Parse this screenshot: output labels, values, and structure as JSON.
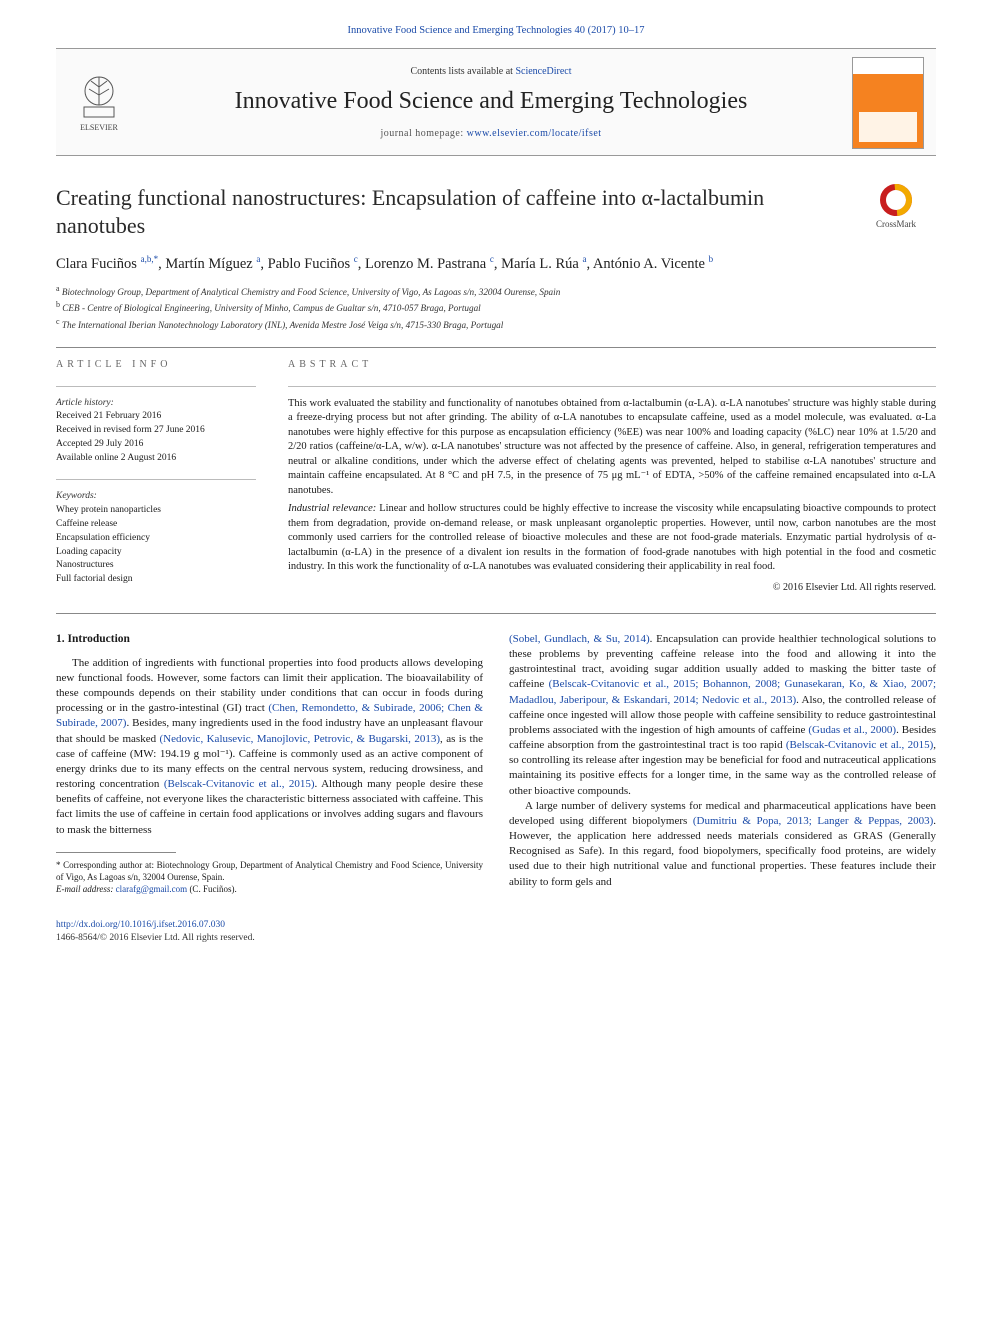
{
  "header": {
    "running_head": "Innovative Food Science and Emerging Technologies 40 (2017) 10–17",
    "contents_prefix": "Contents lists available at ",
    "contents_link": "ScienceDirect",
    "journal": "Innovative Food Science and Emerging Technologies",
    "homepage_prefix": "journal homepage: ",
    "homepage_url": "www.elsevier.com/locate/ifset",
    "elsevier_label": "ELSEVIER"
  },
  "crossmark": {
    "label": "CrossMark"
  },
  "title": "Creating functional nanostructures: Encapsulation of caffeine into α-lactalbumin nanotubes",
  "authors_html": "Clara Fuciños <sup>a,b,*</sup>, Martín Míguez <sup>a</sup>, Pablo Fuciños <sup>c</sup>, Lorenzo M. Pastrana <sup>c</sup>, María L. Rúa <sup>a</sup>, António A. Vicente <sup>b</sup>",
  "affiliations": [
    "a  Biotechnology Group, Department of Analytical Chemistry and Food Science, University of Vigo, As Lagoas s/n, 32004 Ourense, Spain",
    "b  CEB - Centre of Biological Engineering, University of Minho, Campus de Gualtar s/n, 4710-057 Braga, Portugal",
    "c  The International Iberian Nanotechnology Laboratory (INL), Avenida Mestre José Veiga s/n, 4715-330 Braga, Portugal"
  ],
  "article_info": {
    "heading": "article info",
    "history_label": "Article history:",
    "history": [
      "Received 21 February 2016",
      "Received in revised form 27 June 2016",
      "Accepted 29 July 2016",
      "Available online 2 August 2016"
    ],
    "keywords_label": "Keywords:",
    "keywords": [
      "Whey protein nanoparticles",
      "Caffeine release",
      "Encapsulation efficiency",
      "Loading capacity",
      "Nanostructures",
      "Full factorial design"
    ]
  },
  "abstract": {
    "heading": "abstract",
    "p1": "This work evaluated the stability and functionality of nanotubes obtained from α-lactalbumin (α-LA). α-LA nanotubes' structure was highly stable during a freeze-drying process but not after grinding. The ability of α-LA nanotubes to encapsulate caffeine, used as a model molecule, was evaluated. α-La nanotubes were highly effective for this purpose as encapsulation efficiency (%EE) was near 100% and loading capacity (%LC) near 10% at 1.5/20 and 2/20 ratios (caffeine/α-LA, w/w). α-LA nanotubes' structure was not affected by the presence of caffeine. Also, in general, refrigeration temperatures and neutral or alkaline conditions, under which the adverse effect of chelating agents was prevented, helped to stabilise α-LA nanotubes' structure and maintain caffeine encapsulated. At 8 °C and pH 7.5, in the presence of 75 μg mL⁻¹ of EDTA, >50% of the caffeine remained encapsulated into α-LA nanotubes.",
    "relevance_lead": "Industrial relevance:",
    "relevance": "Linear and hollow structures could be highly effective to increase the viscosity while encapsulating bioactive compounds to protect them from degradation, provide on-demand release, or mask unpleasant organoleptic properties. However, until now, carbon nanotubes are the most commonly used carriers for the controlled release of bioactive molecules and these are not food-grade materials. Enzymatic partial hydrolysis of α-lactalbumin (α-LA) in the presence of a divalent ion results in the formation of food-grade nanotubes with high potential in the food and cosmetic industry. In this work the functionality of α-LA nanotubes was evaluated considering their applicability in real food.",
    "copyright": "© 2016 Elsevier Ltd. All rights reserved."
  },
  "body": {
    "section_heading": "1. Introduction",
    "left_col": {
      "p1a": "The addition of ingredients with functional properties into food products allows developing new functional foods. However, some factors can limit their application. The bioavailability of these compounds depends on their stability under conditions that can occur in foods during processing or in the gastro-intestinal (GI) tract ",
      "ref1": "(Chen, Remondetto, & Subirade, 2006; Chen & Subirade, 2007)",
      "p1b": ". Besides, many ingredients used in the food industry have an unpleasant flavour that should be masked ",
      "ref2": "(Nedovic, Kalusevic, Manojlovic, Petrovic, & Bugarski, 2013)",
      "p1c": ", as is the case of caffeine (MW: 194.19 g mol⁻¹). Caffeine is commonly used as an active component of energy drinks due to its many effects on the central nervous system, reducing drowsiness, and restoring concentration ",
      "ref3": "(Belscak-Cvitanovic et al., 2015)",
      "p1d": ". Although many people desire these benefits of caffeine, not everyone likes the characteristic bitterness associated with caffeine. This fact limits the use of caffeine in certain food applications or involves adding sugars and flavours to mask the bitterness"
    },
    "right_col": {
      "ref4": "(Sobel, Gundlach, & Su, 2014)",
      "p2a": ". Encapsulation can provide healthier technological solutions to these problems by preventing caffeine release into the food and allowing it into the gastrointestinal tract, avoiding sugar addition usually added to masking the bitter taste of caffeine ",
      "ref5": "(Belscak-Cvitanovic et al., 2015; Bohannon, 2008; Gunasekaran, Ko, & Xiao, 2007; Madadlou, Jaberipour, & Eskandari, 2014; Nedovic et al., 2013)",
      "p2b": ". Also, the controlled release of caffeine once ingested will allow those people with caffeine sensibility to reduce gastrointestinal problems associated with the ingestion of high amounts of caffeine ",
      "ref6": "(Gudas et al., 2000)",
      "p2c": ". Besides caffeine absorption from the gastrointestinal tract is too rapid ",
      "ref7": "(Belscak-Cvitanovic et al., 2015)",
      "p2d": ", so controlling its release after ingestion may be beneficial for food and nutraceutical applications maintaining its positive effects for a longer time, in the same way as the controlled release of other bioactive compounds.",
      "p3a": "A large number of delivery systems for medical and pharmaceutical applications have been developed using different biopolymers ",
      "ref8": "(Dumitriu & Popa, 2013; Langer & Peppas, 2003)",
      "p3b": ". However, the application here addressed needs materials considered as GRAS (Generally Recognised as Safe). In this regard, food biopolymers, specifically food proteins, are widely used due to their high nutritional value and functional properties. These features include their ability to form gels and"
    }
  },
  "footnote": {
    "corr": "* Corresponding author at: Biotechnology Group, Department of Analytical Chemistry and Food Science, University of Vigo, As Lagoas s/n, 32004 Ourense, Spain.",
    "email_label": "E-mail address: ",
    "email": "clarafg@gmail.com",
    "email_tail": " (C. Fuciños)."
  },
  "footer": {
    "doi": "http://dx.doi.org/10.1016/j.ifset.2016.07.030",
    "issn_line": "1466-8564/© 2016 Elsevier Ltd. All rights reserved."
  },
  "colors": {
    "link": "#1a4aa8",
    "accent_orange": "#f58220",
    "text": "#1a1a1a",
    "rule": "#888888"
  }
}
